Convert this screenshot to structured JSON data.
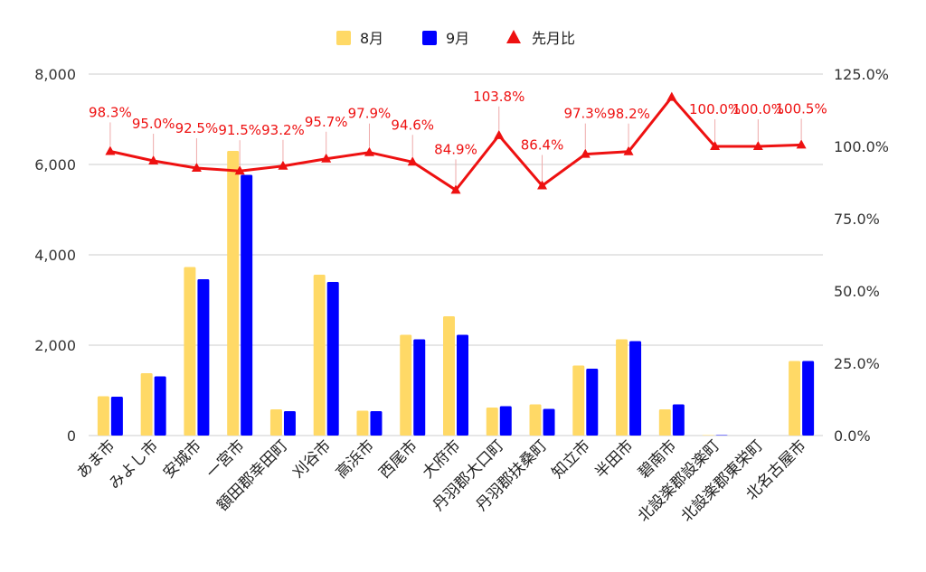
{
  "chart_data": {
    "type": "bar",
    "title": "",
    "xlabel": "",
    "ylabel": "",
    "ylim": [
      0,
      8000
    ],
    "y2lim": [
      0,
      125
    ],
    "y_ticks": [
      "0",
      "2,000",
      "4,000",
      "6,000",
      "8,000"
    ],
    "y2_ticks": [
      "0.0%",
      "25.0%",
      "50.0%",
      "75.0%",
      "100.0%",
      "125.0%"
    ],
    "grid": true,
    "legend_position": "top",
    "categories": [
      "あま市",
      "みよし市",
      "安城市",
      "一宮市",
      "額田郡幸田町",
      "刈谷市",
      "高浜市",
      "西尾市",
      "大府市",
      "丹羽郡大口町",
      "丹羽郡扶桑町",
      "知立市",
      "半田市",
      "碧南市",
      "北設楽郡設楽町",
      "北設楽郡東栄町",
      "北名古屋市"
    ],
    "series": [
      {
        "name": "8月",
        "type": "bar",
        "color": "#ffd966",
        "axis": "left",
        "values": [
          870,
          1380,
          3730,
          6300,
          580,
          3560,
          550,
          2230,
          2640,
          620,
          690,
          1550,
          2130,
          580,
          10,
          0,
          1650
        ]
      },
      {
        "name": "9月",
        "type": "bar",
        "color": "#0000ff",
        "axis": "left",
        "values": [
          860,
          1310,
          3460,
          5770,
          540,
          3400,
          540,
          2130,
          2230,
          650,
          590,
          1480,
          2090,
          690,
          10,
          0,
          1650
        ]
      },
      {
        "name": "先月比",
        "type": "line",
        "color": "#ee1111",
        "axis": "right",
        "marker": "triangle",
        "values": [
          98.3,
          95.0,
          92.5,
          91.5,
          93.2,
          95.7,
          97.9,
          94.6,
          84.9,
          103.8,
          86.4,
          97.3,
          98.2,
          117.0,
          100.0,
          100.0,
          100.5
        ],
        "labels": [
          "98.3%",
          "95.0%",
          "92.5%",
          "91.5%",
          "93.2%",
          "95.7%",
          "97.9%",
          "94.6%",
          "84.9%",
          "103.8%",
          "86.4%",
          "97.3%",
          "98.2%",
          "",
          "100.0%",
          "100.0%",
          "100.5%"
        ]
      }
    ]
  }
}
